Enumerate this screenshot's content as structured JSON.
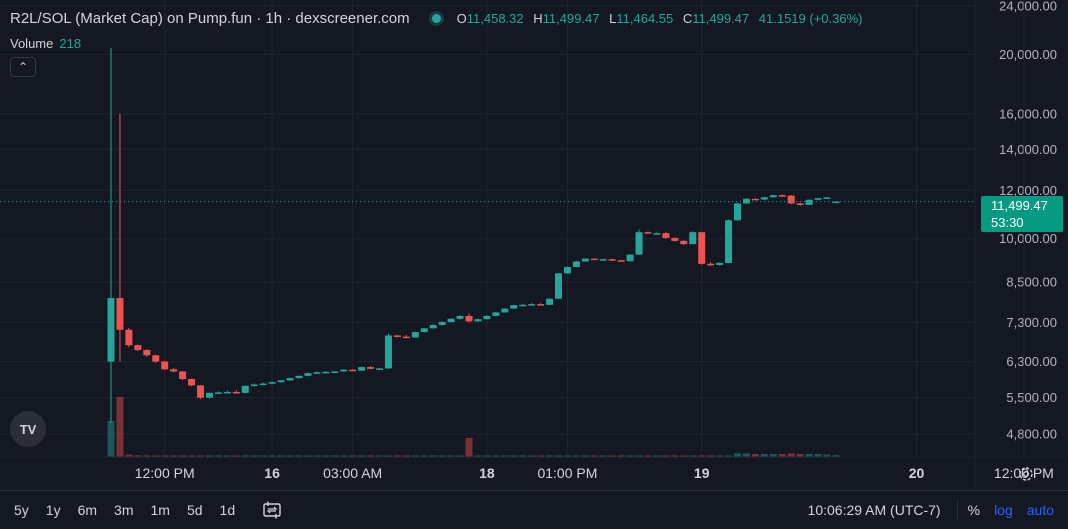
{
  "header": {
    "title": "R2L/SOL (Market Cap) on Pump.fun · 1h · dexscreener.com",
    "o_label": "O",
    "o_value": "11,458.32",
    "h_label": "H",
    "h_value": "11,499.47",
    "l_label": "L",
    "l_value": "11,464.55",
    "c_label": "C",
    "c_value": "11,499.47",
    "change": "41.1519 (+0.36%)"
  },
  "volume": {
    "label": "Volume",
    "value": "218"
  },
  "price_tag": {
    "price": "11,499.47",
    "countdown": "53:30"
  },
  "logo_text": "TV",
  "toolbar": {
    "timeframes": [
      "5y",
      "1y",
      "6m",
      "3m",
      "1m",
      "5d",
      "1d"
    ],
    "clock": "10:06:29 AM (UTC-7)",
    "percent": "%",
    "log": "log",
    "auto": "auto"
  },
  "colors": {
    "up": "#26a69a",
    "down": "#ef5350",
    "background": "#141823",
    "accent": "#2962ff"
  },
  "icons": [
    "chevron-up-icon",
    "compare-icon",
    "gear-icon",
    "tradingview-logo-icon"
  ],
  "chart_data": {
    "type": "candlestick",
    "title": "R2L/SOL (Market Cap) on Pump.fun · 1h · dexscreener.com",
    "y_scale": "log",
    "ylim": [
      4400,
      24000
    ],
    "y_ticks": [
      {
        "value": 24000,
        "label": "24,000.00"
      },
      {
        "value": 20000,
        "label": "20,000.00"
      },
      {
        "value": 16000,
        "label": "16,000.00"
      },
      {
        "value": 14000,
        "label": "14,000.00"
      },
      {
        "value": 12000,
        "label": "12,000.00"
      },
      {
        "value": 10000,
        "label": "10,000.00"
      },
      {
        "value": 8500,
        "label": "8,500.00"
      },
      {
        "value": 7300,
        "label": "7,300.00"
      },
      {
        "value": 6300,
        "label": "6,300.00"
      },
      {
        "value": 5500,
        "label": "5,500.00"
      },
      {
        "value": 4800,
        "label": "4,800.00"
      }
    ],
    "x_ticks": [
      {
        "index": 6,
        "label": "12:00 PM",
        "bold": false
      },
      {
        "index": 18,
        "label": "16",
        "bold": true
      },
      {
        "index": 27,
        "label": "03:00 AM",
        "bold": false
      },
      {
        "index": 42,
        "label": "18",
        "bold": true
      },
      {
        "index": 51,
        "label": "01:00 PM",
        "bold": false
      },
      {
        "index": 66,
        "label": "19",
        "bold": true
      },
      {
        "index": 90,
        "label": "20",
        "bold": true
      },
      {
        "index": 102,
        "label": "12:00 PM",
        "bold": false
      }
    ],
    "last_price": 11499.47,
    "candles": [
      {
        "o": 6300,
        "h": 20500,
        "l": 5000,
        "c": 8000,
        "v": 60
      },
      {
        "o": 8000,
        "h": 16000,
        "l": 6300,
        "c": 7100,
        "v": 100
      },
      {
        "o": 7100,
        "h": 7150,
        "l": 6650,
        "c": 6700,
        "v": 4
      },
      {
        "o": 6700,
        "h": 6720,
        "l": 6560,
        "c": 6580,
        "v": 3
      },
      {
        "o": 6580,
        "h": 6600,
        "l": 6420,
        "c": 6450,
        "v": 2
      },
      {
        "o": 6450,
        "h": 6460,
        "l": 6270,
        "c": 6300,
        "v": 2
      },
      {
        "o": 6300,
        "h": 6320,
        "l": 6100,
        "c": 6120,
        "v": 2
      },
      {
        "o": 6120,
        "h": 6150,
        "l": 6050,
        "c": 6070,
        "v": 2
      },
      {
        "o": 6070,
        "h": 6080,
        "l": 5880,
        "c": 5900,
        "v": 2
      },
      {
        "o": 5900,
        "h": 5910,
        "l": 5740,
        "c": 5760,
        "v": 2
      },
      {
        "o": 5760,
        "h": 5770,
        "l": 5470,
        "c": 5500,
        "v": 2
      },
      {
        "o": 5500,
        "h": 5610,
        "l": 5480,
        "c": 5600,
        "v": 1
      },
      {
        "o": 5600,
        "h": 5630,
        "l": 5580,
        "c": 5610,
        "v": 1
      },
      {
        "o": 5610,
        "h": 5650,
        "l": 5590,
        "c": 5620,
        "v": 1
      },
      {
        "o": 5620,
        "h": 5660,
        "l": 5580,
        "c": 5600,
        "v": 1
      },
      {
        "o": 5600,
        "h": 5760,
        "l": 5590,
        "c": 5750,
        "v": 1
      },
      {
        "o": 5750,
        "h": 5800,
        "l": 5730,
        "c": 5780,
        "v": 1
      },
      {
        "o": 5780,
        "h": 5820,
        "l": 5760,
        "c": 5800,
        "v": 1
      },
      {
        "o": 5800,
        "h": 5850,
        "l": 5780,
        "c": 5830,
        "v": 1
      },
      {
        "o": 5830,
        "h": 5880,
        "l": 5820,
        "c": 5870,
        "v": 1
      },
      {
        "o": 5870,
        "h": 5930,
        "l": 5860,
        "c": 5920,
        "v": 1
      },
      {
        "o": 5920,
        "h": 5980,
        "l": 5910,
        "c": 5970,
        "v": 1
      },
      {
        "o": 5970,
        "h": 6040,
        "l": 5960,
        "c": 6030,
        "v": 1
      },
      {
        "o": 6030,
        "h": 6070,
        "l": 6020,
        "c": 6050,
        "v": 1
      },
      {
        "o": 6050,
        "h": 6080,
        "l": 6040,
        "c": 6060,
        "v": 1
      },
      {
        "o": 6060,
        "h": 6080,
        "l": 6050,
        "c": 6070,
        "v": 1
      },
      {
        "o": 6070,
        "h": 6120,
        "l": 6060,
        "c": 6110,
        "v": 1
      },
      {
        "o": 6110,
        "h": 6120,
        "l": 6080,
        "c": 6090,
        "v": 1
      },
      {
        "o": 6090,
        "h": 6180,
        "l": 6080,
        "c": 6170,
        "v": 1
      },
      {
        "o": 6170,
        "h": 6190,
        "l": 6120,
        "c": 6130,
        "v": 1
      },
      {
        "o": 6130,
        "h": 6150,
        "l": 6110,
        "c": 6140,
        "v": 1
      },
      {
        "o": 6140,
        "h": 7000,
        "l": 6130,
        "c": 6950,
        "v": 2
      },
      {
        "o": 6950,
        "h": 6970,
        "l": 6900,
        "c": 6920,
        "v": 1
      },
      {
        "o": 6920,
        "h": 6960,
        "l": 6880,
        "c": 6900,
        "v": 1
      },
      {
        "o": 6900,
        "h": 7050,
        "l": 6890,
        "c": 7040,
        "v": 1
      },
      {
        "o": 7040,
        "h": 7150,
        "l": 7030,
        "c": 7140,
        "v": 1
      },
      {
        "o": 7140,
        "h": 7250,
        "l": 7130,
        "c": 7230,
        "v": 1
      },
      {
        "o": 7230,
        "h": 7330,
        "l": 7220,
        "c": 7310,
        "v": 1
      },
      {
        "o": 7310,
        "h": 7420,
        "l": 7300,
        "c": 7400,
        "v": 1
      },
      {
        "o": 7400,
        "h": 7500,
        "l": 7380,
        "c": 7480,
        "v": 1
      },
      {
        "o": 7480,
        "h": 7550,
        "l": 7300,
        "c": 7330,
        "v": 32
      },
      {
        "o": 7330,
        "h": 7400,
        "l": 7310,
        "c": 7390,
        "v": 2
      },
      {
        "o": 7390,
        "h": 7500,
        "l": 7380,
        "c": 7480,
        "v": 1
      },
      {
        "o": 7480,
        "h": 7600,
        "l": 7470,
        "c": 7580,
        "v": 1
      },
      {
        "o": 7580,
        "h": 7700,
        "l": 7570,
        "c": 7690,
        "v": 1
      },
      {
        "o": 7690,
        "h": 7800,
        "l": 7680,
        "c": 7790,
        "v": 1
      },
      {
        "o": 7790,
        "h": 7830,
        "l": 7760,
        "c": 7800,
        "v": 1
      },
      {
        "o": 7800,
        "h": 7850,
        "l": 7780,
        "c": 7820,
        "v": 1
      },
      {
        "o": 7820,
        "h": 7850,
        "l": 7790,
        "c": 7800,
        "v": 1
      },
      {
        "o": 7800,
        "h": 7990,
        "l": 7790,
        "c": 7980,
        "v": 1
      },
      {
        "o": 7980,
        "h": 8790,
        "l": 7970,
        "c": 8780,
        "v": 2
      },
      {
        "o": 8780,
        "h": 9010,
        "l": 8770,
        "c": 8990,
        "v": 1
      },
      {
        "o": 8990,
        "h": 9200,
        "l": 8980,
        "c": 9180,
        "v": 1
      },
      {
        "o": 9180,
        "h": 9290,
        "l": 9170,
        "c": 9280,
        "v": 1
      },
      {
        "o": 9280,
        "h": 9290,
        "l": 9230,
        "c": 9250,
        "v": 1
      },
      {
        "o": 9250,
        "h": 9280,
        "l": 9220,
        "c": 9260,
        "v": 1
      },
      {
        "o": 9260,
        "h": 9280,
        "l": 9200,
        "c": 9220,
        "v": 1
      },
      {
        "o": 9220,
        "h": 9240,
        "l": 9170,
        "c": 9190,
        "v": 1
      },
      {
        "o": 9190,
        "h": 9430,
        "l": 9180,
        "c": 9420,
        "v": 1
      },
      {
        "o": 9420,
        "h": 10350,
        "l": 9410,
        "c": 10250,
        "v": 2
      },
      {
        "o": 10250,
        "h": 10280,
        "l": 10190,
        "c": 10200,
        "v": 1
      },
      {
        "o": 10200,
        "h": 10240,
        "l": 10170,
        "c": 10210,
        "v": 1
      },
      {
        "o": 10210,
        "h": 10250,
        "l": 10000,
        "c": 10030,
        "v": 1
      },
      {
        "o": 10030,
        "h": 10050,
        "l": 9900,
        "c": 9920,
        "v": 1
      },
      {
        "o": 9920,
        "h": 9950,
        "l": 9770,
        "c": 9800,
        "v": 1
      },
      {
        "o": 9800,
        "h": 10280,
        "l": 9790,
        "c": 10250,
        "v": 1
      },
      {
        "o": 10250,
        "h": 10270,
        "l": 9070,
        "c": 9100,
        "v": 2
      },
      {
        "o": 9100,
        "h": 9160,
        "l": 9030,
        "c": 9060,
        "v": 1
      },
      {
        "o": 9060,
        "h": 9150,
        "l": 9040,
        "c": 9130,
        "v": 1
      },
      {
        "o": 9130,
        "h": 10750,
        "l": 9120,
        "c": 10720,
        "v": 2
      },
      {
        "o": 10720,
        "h": 11450,
        "l": 10700,
        "c": 11420,
        "v": 6
      },
      {
        "o": 11420,
        "h": 11650,
        "l": 11400,
        "c": 11620,
        "v": 6
      },
      {
        "o": 11620,
        "h": 11660,
        "l": 11560,
        "c": 11590,
        "v": 5
      },
      {
        "o": 11590,
        "h": 11700,
        "l": 11570,
        "c": 11690,
        "v": 5
      },
      {
        "o": 11690,
        "h": 11800,
        "l": 11680,
        "c": 11780,
        "v": 5
      },
      {
        "o": 11780,
        "h": 11820,
        "l": 11740,
        "c": 11760,
        "v": 5
      },
      {
        "o": 11760,
        "h": 11790,
        "l": 11380,
        "c": 11420,
        "v": 6
      },
      {
        "o": 11420,
        "h": 11450,
        "l": 11330,
        "c": 11360,
        "v": 5
      },
      {
        "o": 11360,
        "h": 11600,
        "l": 11350,
        "c": 11580,
        "v": 5
      },
      {
        "o": 11580,
        "h": 11660,
        "l": 11560,
        "c": 11650,
        "v": 5
      },
      {
        "o": 11650,
        "h": 11700,
        "l": 11630,
        "c": 11680,
        "v": 4
      },
      {
        "o": 11458.32,
        "h": 11499.47,
        "l": 11464.55,
        "c": 11499.47,
        "v": 3
      }
    ]
  }
}
